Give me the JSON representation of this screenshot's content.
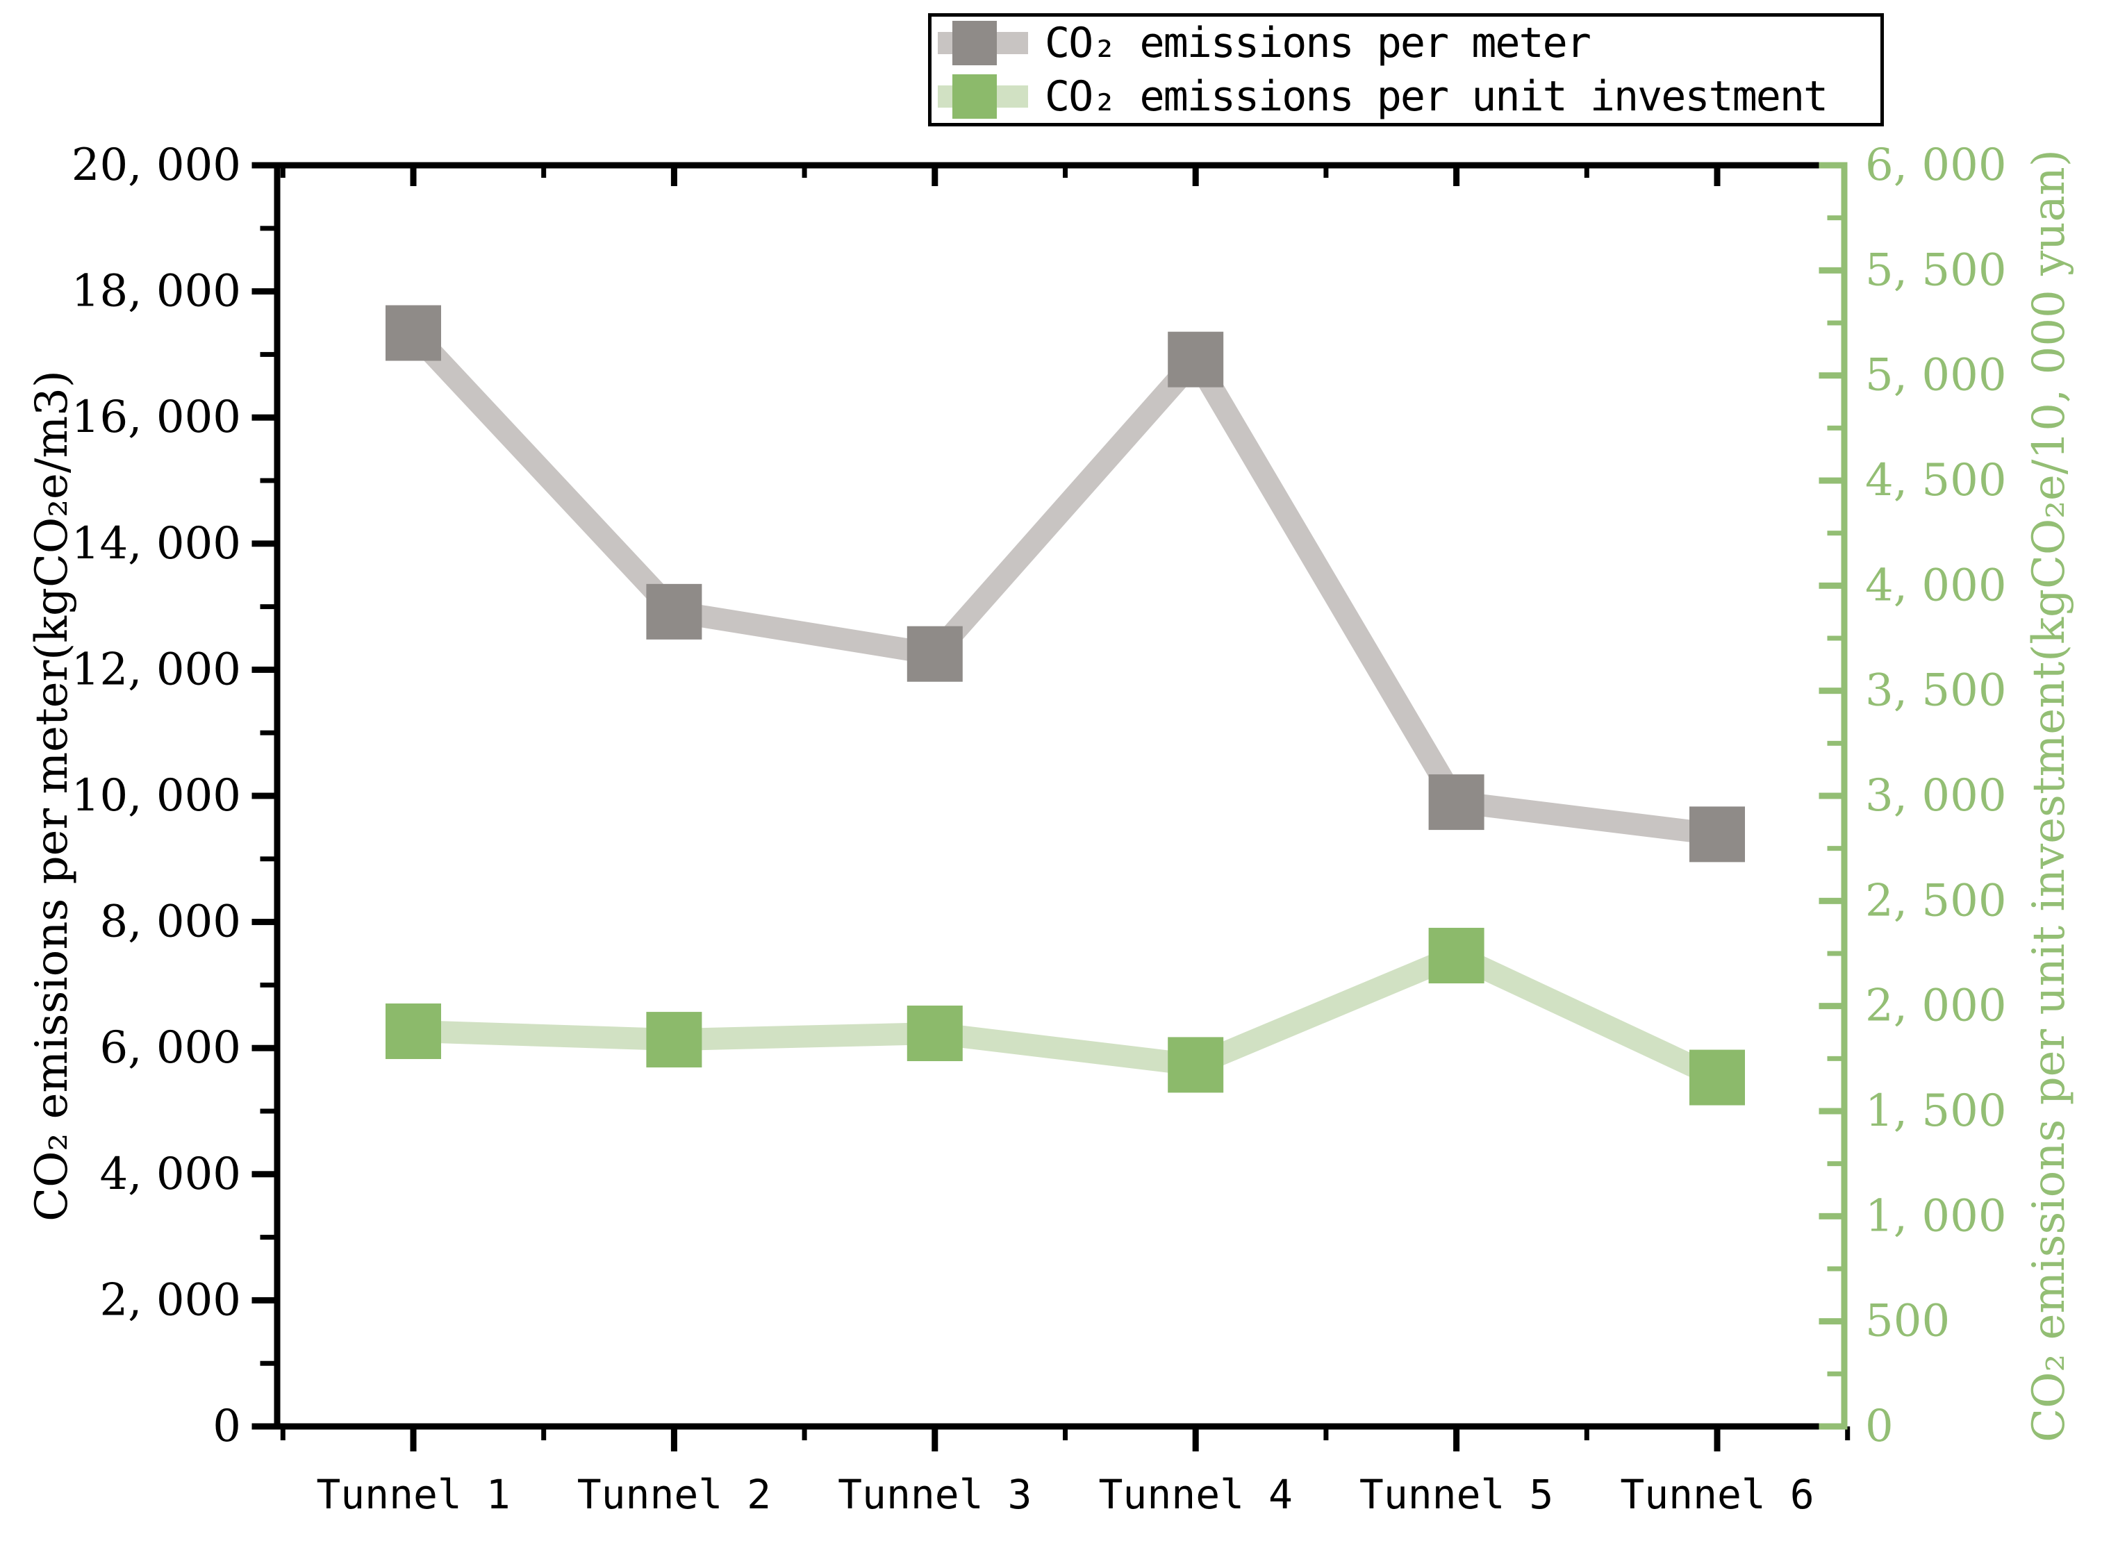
{
  "legend": {
    "items": [
      {
        "label": "CO₂ emissions per meter"
      },
      {
        "label": "CO₂ emissions per unit investment"
      }
    ]
  },
  "chart_data": {
    "type": "line",
    "categories": [
      "Tunnel 1",
      "Tunnel 2",
      "Tunnel 3",
      "Tunnel 4",
      "Tunnel 5",
      "Tunnel 6"
    ],
    "series": [
      {
        "name": "CO₂ emissions per meter",
        "axis": "left",
        "values": [
          17340,
          12920,
          12250,
          16920,
          9900,
          9390
        ],
        "marker_color": "#8F8B88",
        "line_color": "#C8C4C2",
        "marker_shape": "square"
      },
      {
        "name": "CO₂ emissions per unit investment",
        "axis": "right",
        "values": [
          1880,
          1840,
          1870,
          1720,
          2240,
          1660
        ],
        "marker_color": "#8CBA6B",
        "line_color": "#D1E1C3",
        "marker_shape": "square"
      }
    ],
    "left_axis": {
      "label": "CO₂ emissions per meter(kgCO₂e/m3)",
      "min": 0,
      "max": 20000,
      "major_step": 2000,
      "minor_step": 1000,
      "color": "#000000",
      "tick_labels": [
        "0",
        "2, 000",
        "4, 000",
        "6, 000",
        "8, 000",
        "10, 000",
        "12, 000",
        "14, 000",
        "16, 000",
        "18, 000",
        "20, 000"
      ]
    },
    "right_axis": {
      "label": "CO₂ emissions per unit investment(kgCO₂e/10, 000 yuan)",
      "min": 0,
      "max": 6000,
      "major_step": 500,
      "minor_step": 250,
      "color": "#93BE74",
      "tick_labels": [
        "0",
        "500",
        "1, 000",
        "1, 500",
        "2, 000",
        "2, 500",
        "3, 000",
        "3, 500",
        "4, 000",
        "4, 500",
        "5, 000",
        "5, 500",
        "6, 000"
      ]
    },
    "x_axis": {
      "color": "#000000",
      "tick_labels": [
        "Tunnel 1",
        "Tunnel 2",
        "Tunnel 3",
        "Tunnel 4",
        "Tunnel 5",
        "Tunnel 6"
      ]
    },
    "legend_position": "top",
    "grid": false
  }
}
